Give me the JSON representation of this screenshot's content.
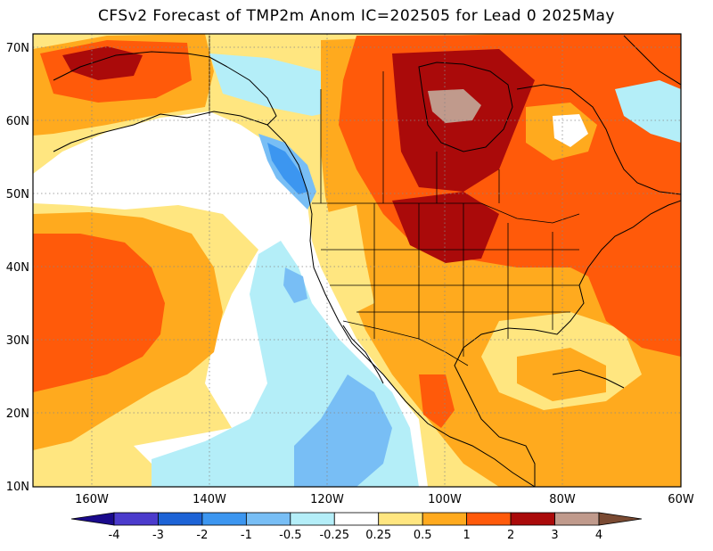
{
  "title": "CFSv2 Forecast of TMP2m Anom IC=202505 for Lead 0 2025May",
  "axes": {
    "lat_labels": [
      "70N",
      "60N",
      "50N",
      "40N",
      "30N",
      "20N",
      "10N"
    ],
    "lon_labels": [
      "160W",
      "140W",
      "120W",
      "100W",
      "80W",
      "60W"
    ]
  },
  "colorbar": {
    "labels": [
      "-4",
      "-3",
      "-2",
      "-1",
      "-0.5",
      "-0.25",
      "0.25",
      "0.5",
      "1",
      "2",
      "3",
      "4"
    ],
    "colors": [
      "#1a0a8c",
      "#4b3bcc",
      "#1d63d6",
      "#3c96f0",
      "#78bef5",
      "#b4eef8",
      "#ffffff",
      "#ffe680",
      "#ffaa1e",
      "#ff5a0a",
      "#aa0a0a",
      "#c09a8c",
      "#7a4a32"
    ]
  },
  "palette": {
    "t_025_05": "#ffe680",
    "t_05_1": "#ffaa1e",
    "t_1_2": "#ff5a0a",
    "t_2_3": "#aa0a0a",
    "t_3_4": "#c09a8c",
    "t_m025_m05": "#b4eef8",
    "t_m05_m1": "#78bef5",
    "t_m1_m2": "#3c96f0"
  }
}
